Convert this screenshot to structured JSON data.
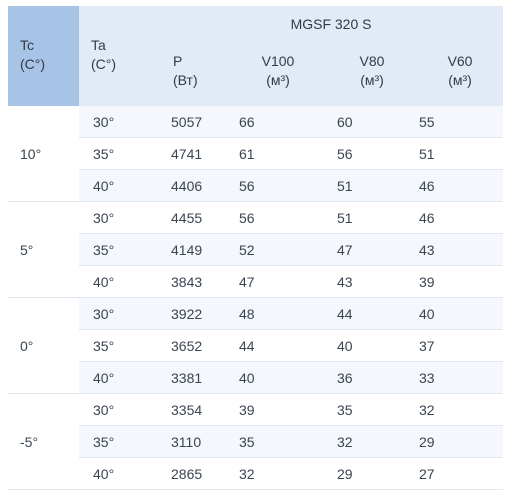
{
  "header": {
    "tc_label": "Tc",
    "tc_unit": "(C°)",
    "ta_label": "Ta",
    "ta_unit": "(C°)",
    "model": "MGSF 320 S",
    "p_label": "P",
    "p_unit": "(Вт)",
    "v100_label": "V100",
    "v80_label": "V80",
    "v60_label": "V60",
    "v_unit": "(м³)"
  },
  "groups": [
    {
      "tc": "10°",
      "rows": [
        {
          "ta": "30°",
          "p": "5057",
          "v100": "66",
          "v80": "60",
          "v60": "55"
        },
        {
          "ta": "35°",
          "p": "4741",
          "v100": "61",
          "v80": "56",
          "v60": "51"
        },
        {
          "ta": "40°",
          "p": "4406",
          "v100": "56",
          "v80": "51",
          "v60": "46"
        }
      ]
    },
    {
      "tc": "5°",
      "rows": [
        {
          "ta": "30°",
          "p": "4455",
          "v100": "56",
          "v80": "51",
          "v60": "46"
        },
        {
          "ta": "35°",
          "p": "4149",
          "v100": "52",
          "v80": "47",
          "v60": "43"
        },
        {
          "ta": "40°",
          "p": "3843",
          "v100": "47",
          "v80": "43",
          "v60": "39"
        }
      ]
    },
    {
      "tc": "0°",
      "rows": [
        {
          "ta": "30°",
          "p": "3922",
          "v100": "48",
          "v80": "44",
          "v60": "40"
        },
        {
          "ta": "35°",
          "p": "3652",
          "v100": "44",
          "v80": "40",
          "v60": "37"
        },
        {
          "ta": "40°",
          "p": "3381",
          "v100": "40",
          "v80": "36",
          "v60": "33"
        }
      ]
    },
    {
      "tc": "-5°",
      "rows": [
        {
          "ta": "30°",
          "p": "3354",
          "v100": "39",
          "v80": "35",
          "v60": "32"
        },
        {
          "ta": "35°",
          "p": "3110",
          "v100": "35",
          "v80": "32",
          "v60": "29"
        },
        {
          "ta": "40°",
          "p": "2865",
          "v100": "32",
          "v80": "29",
          "v60": "27"
        }
      ]
    }
  ]
}
